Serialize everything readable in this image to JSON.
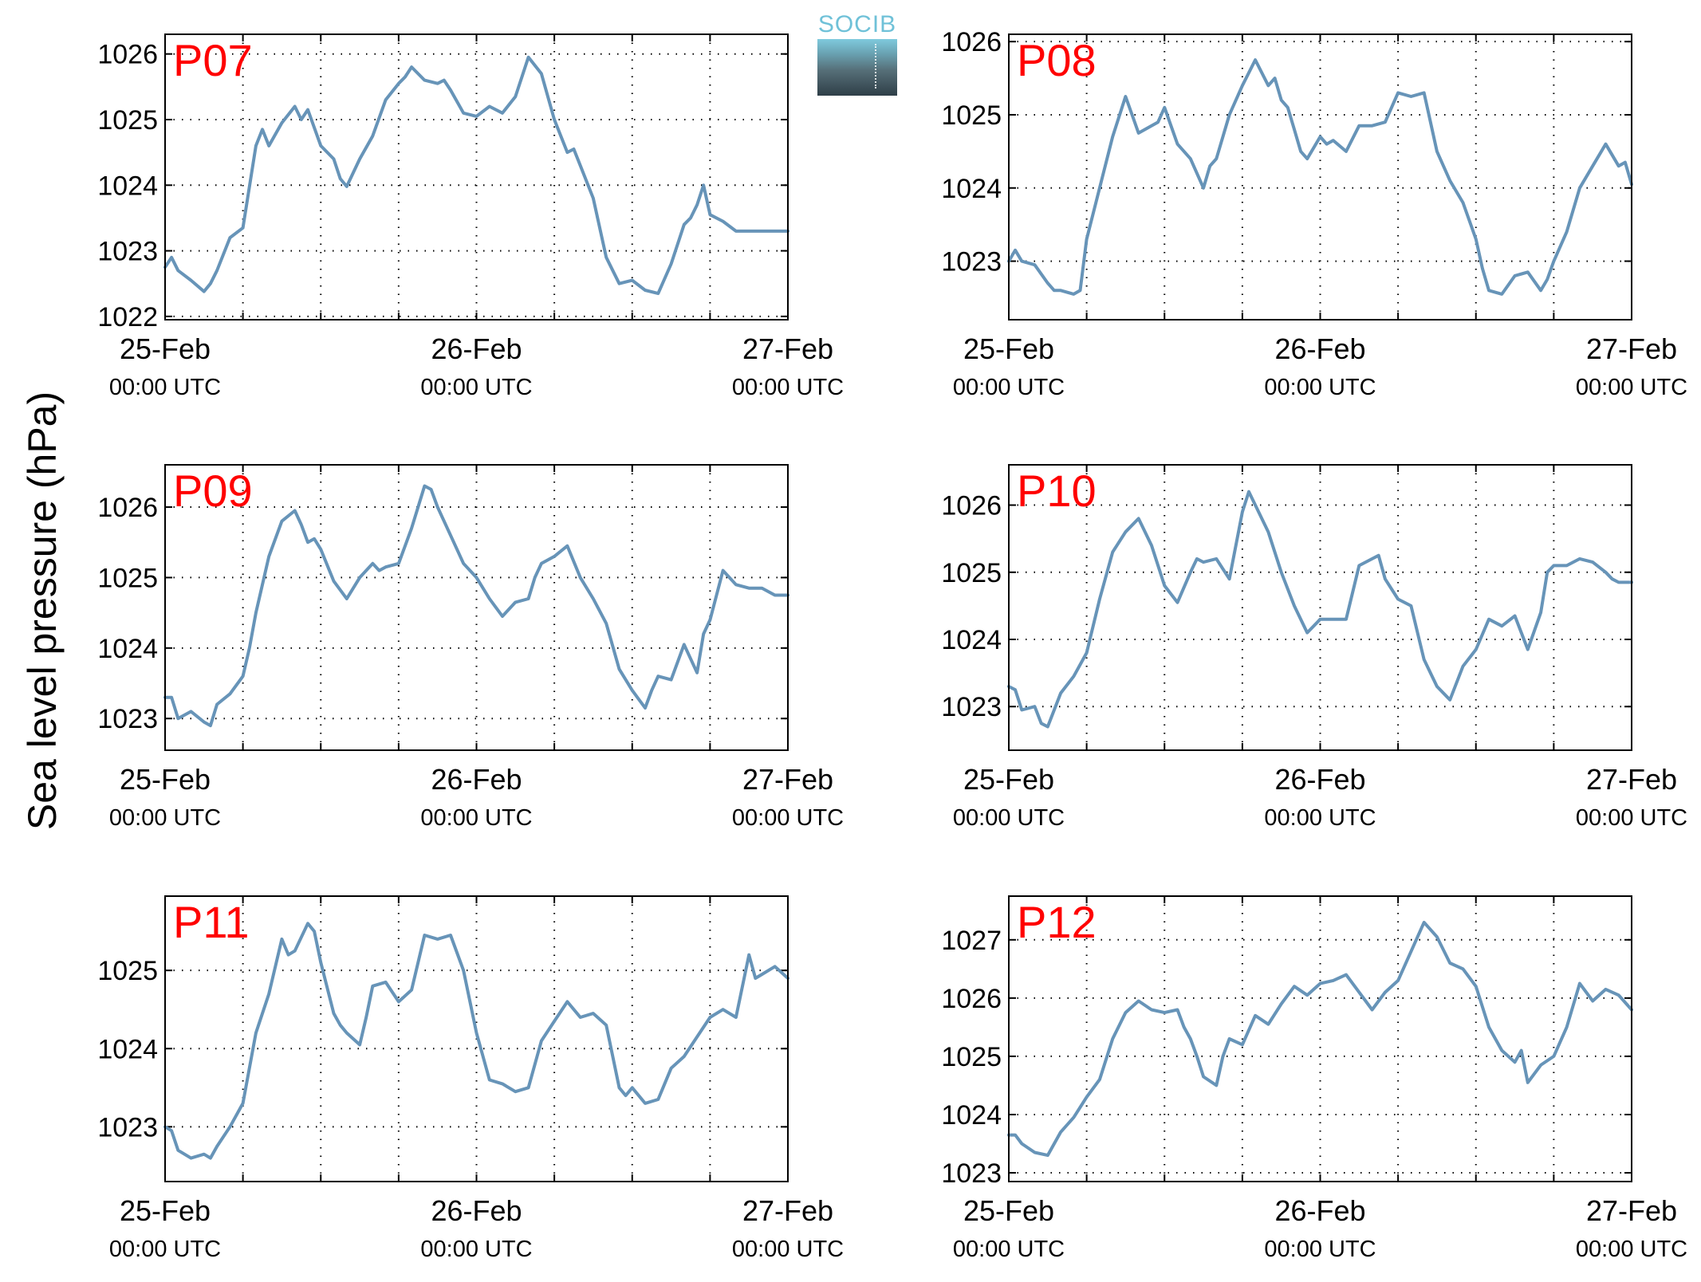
{
  "figure": {
    "ylabel": "Sea level pressure (hPa)",
    "logo_text": "SOCIB",
    "label_color": "#ff0000",
    "line_color": "#6794b8"
  },
  "chart_data": [
    {
      "type": "line",
      "label": "P07",
      "x_ticks": [
        {
          "top": "25-Feb",
          "bottom": "00:00 UTC"
        },
        {
          "top": "26-Feb",
          "bottom": "00:00 UTC"
        },
        {
          "top": "27-Feb",
          "bottom": "00:00 UTC"
        }
      ],
      "xlim": [
        0,
        48
      ],
      "ylim": [
        1021.95,
        1026.3
      ],
      "yticks": [
        1022,
        1023,
        1024,
        1025,
        1026
      ],
      "grid": true,
      "x": [
        0,
        0.5,
        1,
        2,
        3,
        3.5,
        4,
        5,
        6,
        7,
        7.5,
        8,
        9,
        10,
        10.5,
        11,
        12,
        12.5,
        13,
        13.5,
        14,
        15,
        16,
        17,
        18,
        18.5,
        19,
        20,
        21,
        21.5,
        22,
        23,
        24,
        25,
        26,
        27,
        28,
        29,
        30,
        31,
        31.5,
        32,
        33,
        34,
        35,
        36,
        37,
        38,
        39,
        40,
        40.5,
        41,
        41.5,
        42,
        43,
        44,
        45,
        45.5,
        46,
        47,
        48
      ],
      "y": [
        1022.75,
        1022.9,
        1022.7,
        1022.55,
        1022.38,
        1022.5,
        1022.7,
        1023.2,
        1023.35,
        1024.6,
        1024.85,
        1024.6,
        1024.95,
        1025.2,
        1025.0,
        1025.15,
        1024.6,
        1024.5,
        1024.4,
        1024.1,
        1023.98,
        1024.4,
        1024.75,
        1025.3,
        1025.55,
        1025.65,
        1025.8,
        1025.6,
        1025.55,
        1025.6,
        1025.45,
        1025.1,
        1025.05,
        1025.2,
        1025.1,
        1025.35,
        1025.95,
        1025.7,
        1025.0,
        1024.5,
        1024.55,
        1024.3,
        1023.8,
        1022.9,
        1022.5,
        1022.55,
        1022.4,
        1022.35,
        1022.8,
        1023.4,
        1023.5,
        1023.7,
        1024.0,
        1023.55,
        1023.45,
        1023.3,
        1023.3,
        1023.3,
        1023.3,
        1023.3,
        1023.3
      ]
    },
    {
      "type": "line",
      "label": "P08",
      "x_ticks": [
        {
          "top": "25-Feb",
          "bottom": "00:00 UTC"
        },
        {
          "top": "26-Feb",
          "bottom": "00:00 UTC"
        },
        {
          "top": "27-Feb",
          "bottom": "00:00 UTC"
        }
      ],
      "xlim": [
        0,
        48
      ],
      "ylim": [
        1022.2,
        1026.1
      ],
      "yticks": [
        1023,
        1024,
        1025,
        1026
      ],
      "grid": true,
      "x": [
        0,
        0.5,
        1,
        2,
        3,
        3.5,
        4,
        5,
        5.5,
        6,
        7,
        8,
        9,
        9.5,
        10,
        11,
        11.5,
        12,
        13,
        14,
        15,
        15.5,
        16,
        17,
        18,
        19,
        20,
        20.5,
        21,
        21.5,
        22,
        22.5,
        23,
        24,
        24.5,
        25,
        26,
        27,
        27.5,
        28,
        29,
        30,
        31,
        32,
        33,
        34,
        35,
        36,
        36.5,
        37,
        38,
        39,
        40,
        41,
        41.5,
        42,
        43,
        44,
        45,
        46,
        47,
        47.5,
        48
      ],
      "y": [
        1023.0,
        1023.15,
        1023.0,
        1022.95,
        1022.7,
        1022.6,
        1022.6,
        1022.55,
        1022.6,
        1023.3,
        1024.0,
        1024.7,
        1025.25,
        1025.0,
        1024.75,
        1024.85,
        1024.9,
        1025.1,
        1024.6,
        1024.4,
        1024.0,
        1024.3,
        1024.4,
        1025.0,
        1025.4,
        1025.75,
        1025.4,
        1025.5,
        1025.2,
        1025.1,
        1024.8,
        1024.5,
        1024.4,
        1024.7,
        1024.6,
        1024.65,
        1024.5,
        1024.85,
        1024.85,
        1024.85,
        1024.9,
        1025.3,
        1025.25,
        1025.3,
        1024.5,
        1024.1,
        1023.8,
        1023.3,
        1022.9,
        1022.6,
        1022.55,
        1022.8,
        1022.85,
        1022.6,
        1022.75,
        1023.0,
        1023.4,
        1024.0,
        1024.3,
        1024.6,
        1024.3,
        1024.35,
        1024.05
      ]
    },
    {
      "type": "line",
      "label": "P09",
      "x_ticks": [
        {
          "top": "25-Feb",
          "bottom": "00:00 UTC"
        },
        {
          "top": "26-Feb",
          "bottom": "00:00 UTC"
        },
        {
          "top": "27-Feb",
          "bottom": "00:00 UTC"
        }
      ],
      "xlim": [
        0,
        48
      ],
      "ylim": [
        1022.55,
        1026.6
      ],
      "yticks": [
        1023,
        1024,
        1025,
        1026
      ],
      "grid": true,
      "x": [
        0,
        0.5,
        1,
        2,
        3,
        3.5,
        4,
        5,
        6,
        6.5,
        7,
        8,
        9,
        10,
        10.5,
        11,
        11.5,
        12,
        13,
        14,
        15,
        16,
        16.5,
        17,
        18,
        19,
        20,
        20.5,
        21,
        22,
        23,
        24,
        25,
        26,
        27,
        28,
        28.5,
        29,
        30,
        31,
        32,
        33,
        34,
        35,
        36,
        37,
        37.5,
        38,
        39,
        40,
        41,
        41.5,
        42,
        43,
        44,
        45,
        45.5,
        46,
        47,
        48
      ],
      "y": [
        1023.3,
        1023.3,
        1023.0,
        1023.1,
        1022.95,
        1022.9,
        1023.2,
        1023.35,
        1023.6,
        1024.0,
        1024.5,
        1025.3,
        1025.8,
        1025.95,
        1025.75,
        1025.5,
        1025.55,
        1025.4,
        1024.95,
        1024.7,
        1025.0,
        1025.2,
        1025.1,
        1025.15,
        1025.2,
        1025.7,
        1026.3,
        1026.25,
        1026.0,
        1025.6,
        1025.2,
        1025.0,
        1024.7,
        1024.45,
        1024.65,
        1024.7,
        1025.0,
        1025.2,
        1025.3,
        1025.45,
        1025.0,
        1024.7,
        1024.35,
        1023.7,
        1023.4,
        1023.15,
        1023.4,
        1023.6,
        1023.55,
        1024.05,
        1023.65,
        1024.2,
        1024.4,
        1025.1,
        1024.9,
        1024.85,
        1024.85,
        1024.85,
        1024.75,
        1024.75
      ]
    },
    {
      "type": "line",
      "label": "P10",
      "x_ticks": [
        {
          "top": "25-Feb",
          "bottom": "00:00 UTC"
        },
        {
          "top": "26-Feb",
          "bottom": "00:00 UTC"
        },
        {
          "top": "27-Feb",
          "bottom": "00:00 UTC"
        }
      ],
      "xlim": [
        0,
        48
      ],
      "ylim": [
        1022.35,
        1026.6
      ],
      "yticks": [
        1023,
        1024,
        1025,
        1026
      ],
      "grid": true,
      "x": [
        0,
        0.5,
        1,
        2,
        2.5,
        3,
        4,
        5,
        6,
        7,
        8,
        9,
        10,
        11,
        12,
        13,
        14,
        14.5,
        15,
        16,
        17,
        18,
        18.5,
        19,
        20,
        21,
        22,
        23,
        24,
        25,
        26,
        27,
        28,
        28.5,
        29,
        30,
        31,
        32,
        33,
        34,
        35,
        36,
        37,
        38,
        39,
        40,
        41,
        41.5,
        42,
        43,
        44,
        45,
        46,
        46.5,
        47,
        48
      ],
      "y": [
        1023.3,
        1023.25,
        1022.95,
        1023.0,
        1022.75,
        1022.7,
        1023.2,
        1023.45,
        1023.8,
        1024.6,
        1025.3,
        1025.6,
        1025.8,
        1025.4,
        1024.8,
        1024.55,
        1025.0,
        1025.2,
        1025.15,
        1025.2,
        1024.9,
        1025.9,
        1026.2,
        1026.0,
        1025.6,
        1025.0,
        1024.5,
        1024.1,
        1024.3,
        1024.3,
        1024.3,
        1025.1,
        1025.2,
        1025.25,
        1024.9,
        1024.6,
        1024.5,
        1023.7,
        1023.3,
        1023.1,
        1023.6,
        1023.85,
        1024.3,
        1024.2,
        1024.35,
        1023.85,
        1024.4,
        1025.0,
        1025.1,
        1025.1,
        1025.2,
        1025.15,
        1025.0,
        1024.9,
        1024.85,
        1024.85
      ]
    },
    {
      "type": "line",
      "label": "P11",
      "x_ticks": [
        {
          "top": "25-Feb",
          "bottom": "00:00 UTC"
        },
        {
          "top": "26-Feb",
          "bottom": "00:00 UTC"
        },
        {
          "top": "27-Feb",
          "bottom": "00:00 UTC"
        }
      ],
      "xlim": [
        0,
        48
      ],
      "ylim": [
        1022.3,
        1025.95
      ],
      "yticks": [
        1023,
        1024,
        1025
      ],
      "grid": true,
      "x": [
        0,
        0.5,
        1,
        2,
        3,
        3.5,
        4,
        5,
        6,
        7,
        8,
        9,
        9.5,
        10,
        11,
        11.5,
        12,
        13,
        13.5,
        14,
        15,
        15.5,
        16,
        17,
        18,
        19,
        20,
        21,
        22,
        23,
        24,
        25,
        26,
        27,
        28,
        29,
        30,
        31,
        32,
        33,
        34,
        35,
        35.5,
        36,
        37,
        38,
        39,
        40,
        41,
        42,
        43,
        44,
        45,
        45.5,
        46,
        47,
        48
      ],
      "y": [
        1023.0,
        1022.95,
        1022.7,
        1022.6,
        1022.65,
        1022.6,
        1022.75,
        1023.0,
        1023.3,
        1024.2,
        1024.7,
        1025.4,
        1025.2,
        1025.25,
        1025.6,
        1025.5,
        1025.1,
        1024.45,
        1024.3,
        1024.2,
        1024.05,
        1024.4,
        1024.8,
        1024.85,
        1024.6,
        1024.75,
        1025.45,
        1025.4,
        1025.45,
        1025.0,
        1024.2,
        1023.6,
        1023.55,
        1023.45,
        1023.5,
        1024.1,
        1024.35,
        1024.6,
        1024.4,
        1024.45,
        1024.3,
        1023.5,
        1023.4,
        1023.5,
        1023.3,
        1023.35,
        1023.75,
        1023.9,
        1024.15,
        1024.4,
        1024.5,
        1024.4,
        1025.2,
        1024.9,
        1024.95,
        1025.05,
        1024.9
      ]
    },
    {
      "type": "line",
      "label": "P12",
      "x_ticks": [
        {
          "top": "25-Feb",
          "bottom": "00:00 UTC"
        },
        {
          "top": "26-Feb",
          "bottom": "00:00 UTC"
        },
        {
          "top": "27-Feb",
          "bottom": "00:00 UTC"
        }
      ],
      "xlim": [
        0,
        48
      ],
      "ylim": [
        1022.85,
        1027.75
      ],
      "yticks": [
        1023,
        1024,
        1025,
        1026,
        1027
      ],
      "grid": true,
      "x": [
        0,
        0.5,
        1,
        2,
        3,
        4,
        5,
        6,
        7,
        8,
        9,
        10,
        11,
        12,
        13,
        13.5,
        14,
        14.5,
        15,
        16,
        16.5,
        17,
        18,
        19,
        20,
        21,
        22,
        23,
        24,
        25,
        26,
        27,
        28,
        29,
        30,
        31,
        32,
        33,
        34,
        35,
        36,
        37,
        38,
        39,
        39.5,
        40,
        41,
        42,
        43,
        44,
        45,
        46,
        47,
        48
      ],
      "y": [
        1023.65,
        1023.65,
        1023.5,
        1023.35,
        1023.3,
        1023.7,
        1023.95,
        1024.3,
        1024.6,
        1025.3,
        1025.75,
        1025.95,
        1025.8,
        1025.75,
        1025.8,
        1025.5,
        1025.3,
        1025.0,
        1024.65,
        1024.5,
        1025.0,
        1025.3,
        1025.2,
        1025.7,
        1025.55,
        1025.9,
        1026.2,
        1026.05,
        1026.25,
        1026.3,
        1026.4,
        1026.1,
        1025.8,
        1026.1,
        1026.3,
        1026.8,
        1027.3,
        1027.05,
        1026.6,
        1026.5,
        1026.2,
        1025.5,
        1025.1,
        1024.9,
        1025.1,
        1024.55,
        1024.85,
        1025.0,
        1025.5,
        1026.25,
        1025.95,
        1026.15,
        1026.05,
        1025.8
      ]
    }
  ]
}
